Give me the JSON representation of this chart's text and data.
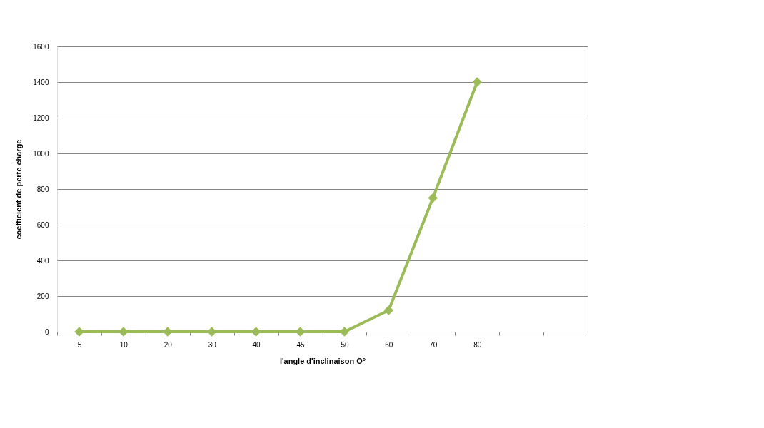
{
  "chart_data": {
    "type": "line",
    "xlabel": "l'angle d'inclinaison    O°",
    "ylabel": "coefficient de  perte charge",
    "categories": [
      "5",
      "10",
      "20",
      "30",
      "40",
      "45",
      "50",
      "60",
      "70",
      "80",
      null,
      null
    ],
    "series": [
      {
        "color": "#9bbb59",
        "values": [
          0,
          0,
          0,
          0,
          0,
          0,
          0,
          120,
          750,
          1400,
          null,
          null
        ]
      }
    ],
    "ylim": [
      0,
      1600
    ],
    "yticks": [
      0,
      200,
      400,
      600,
      800,
      1000,
      1200,
      1400,
      1600
    ],
    "grid": "y",
    "marker": "diamond",
    "line_style": "solid"
  }
}
